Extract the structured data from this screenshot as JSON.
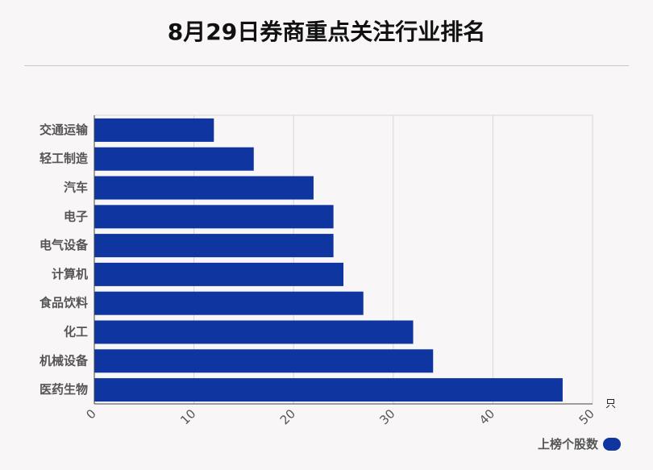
{
  "title": "8月29日券商重点关注行业排名",
  "chart_data": {
    "type": "bar",
    "orientation": "horizontal",
    "categories": [
      "交通运输",
      "轻工制造",
      "汽车",
      "电子",
      "电气设备",
      "计算机",
      "食品饮料",
      "化工",
      "机械设备",
      "医药生物"
    ],
    "series": [
      {
        "name": "上榜个股数",
        "values": [
          12,
          16,
          22,
          24,
          24,
          25,
          27,
          32,
          34,
          47
        ]
      }
    ],
    "xlim": [
      0,
      50
    ],
    "xticks": [
      "0",
      "10",
      "20",
      "30",
      "40",
      "50"
    ],
    "x_unit": "只",
    "grid": true,
    "legend_position": "bottom-right",
    "bar_color": "#0e35a0"
  }
}
